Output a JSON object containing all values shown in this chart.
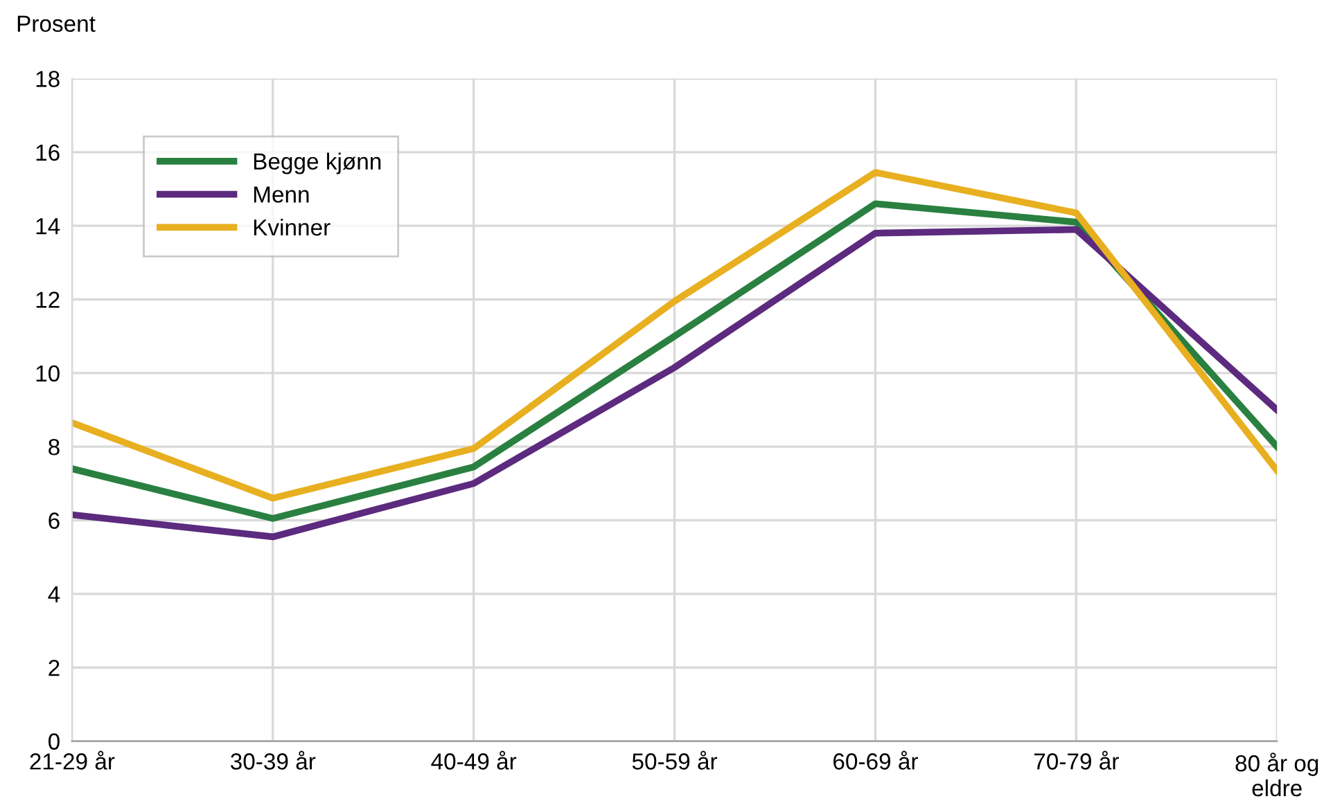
{
  "chart_data": {
    "type": "line",
    "ylabel": "Prosent",
    "categories": [
      "21-29 år",
      "30-39 år",
      "40-49 år",
      "50-59 år",
      "60-69 år",
      "70-79 år",
      "80 år og\neldre"
    ],
    "series": [
      {
        "name": "Begge kjønn",
        "color": "#2a8040",
        "values": [
          7.4,
          6.05,
          7.45,
          11.0,
          14.6,
          14.1,
          8.0
        ]
      },
      {
        "name": "Menn",
        "color": "#5c2a7e",
        "values": [
          6.15,
          5.55,
          7.0,
          10.15,
          13.8,
          13.9,
          9.0
        ]
      },
      {
        "name": "Kvinner",
        "color": "#e8b020",
        "values": [
          8.65,
          6.6,
          7.95,
          11.95,
          15.45,
          14.35,
          7.35
        ]
      }
    ],
    "ylim": [
      0,
      18
    ],
    "yticks": [
      0,
      2,
      4,
      6,
      8,
      10,
      12,
      14,
      16,
      18
    ],
    "grid": true,
    "legend": "top left",
    "marker": "none",
    "line_style": "solid"
  }
}
